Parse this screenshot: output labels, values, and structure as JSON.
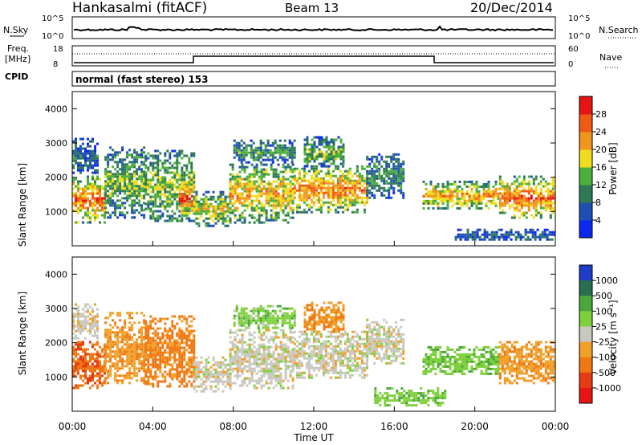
{
  "header": {
    "station": "Hankasalmi (fitACF)",
    "beam": "Beam 13",
    "date": "20/Dec/2014"
  },
  "strips": {
    "nsky_label": "N.Sky",
    "nsearch_label": "N.Search",
    "freq_label_1": "Freq.",
    "freq_label_2": "[MHz]",
    "nave_label": "Nave",
    "cpid_label": "CPID",
    "count_ticks_left": [
      "10^5",
      "10^0"
    ],
    "count_ticks_right": [
      "10^5",
      "10^0"
    ],
    "freq_ticks": [
      "18",
      "8"
    ],
    "nave_ticks": [
      "60",
      "0"
    ],
    "cpid_text": "normal (fast stereo) 153"
  },
  "chart_data": [
    {
      "type": "heatmap",
      "name": "power",
      "xlabel": "",
      "ylabel": "Slant Range [km]",
      "ylim": [
        0,
        4500
      ],
      "yticks": [
        "1000",
        "2000",
        "3000",
        "4000"
      ],
      "colorbar_label": "Power [dB]",
      "colorbar_ticks": [
        "4",
        "8",
        "12",
        "16",
        "20",
        "24",
        "28"
      ],
      "colorscale": [
        "#0a28f0",
        "#1e4fb4",
        "#2f7a55",
        "#4caf3c",
        "#f0dc1e",
        "#f0961e",
        "#f05a14",
        "#e61414"
      ],
      "echo_regions": [
        {
          "t": [
            0.0,
            1.6
          ],
          "r": [
            700,
            2050
          ],
          "level": 0.85
        },
        {
          "t": [
            0.0,
            1.2
          ],
          "r": [
            2100,
            3150
          ],
          "level": 0.25
        },
        {
          "t": [
            1.6,
            3.6
          ],
          "r": [
            800,
            2900
          ],
          "level": 0.45
        },
        {
          "t": [
            3.6,
            6.0
          ],
          "r": [
            700,
            2800
          ],
          "level": 0.5
        },
        {
          "t": [
            5.3,
            6.0
          ],
          "r": [
            900,
            1900
          ],
          "level": 0.95
        },
        {
          "t": [
            6.0,
            7.8
          ],
          "r": [
            600,
            1600
          ],
          "level": 0.6
        },
        {
          "t": [
            7.8,
            11.0
          ],
          "r": [
            700,
            2400
          ],
          "level": 0.7
        },
        {
          "t": [
            8.0,
            11.0
          ],
          "r": [
            2400,
            3100
          ],
          "level": 0.35
        },
        {
          "t": [
            11.0,
            14.6
          ],
          "r": [
            1000,
            2350
          ],
          "level": 0.8
        },
        {
          "t": [
            11.5,
            13.5
          ],
          "r": [
            2300,
            3200
          ],
          "level": 0.45
        },
        {
          "t": [
            14.6,
            16.4
          ],
          "r": [
            1400,
            2700
          ],
          "level": 0.35
        },
        {
          "t": [
            17.4,
            21.2
          ],
          "r": [
            1100,
            1900
          ],
          "level": 0.75
        },
        {
          "t": [
            21.2,
            24.0
          ],
          "r": [
            800,
            2050
          ],
          "level": 0.85
        },
        {
          "t": [
            19.0,
            24.0
          ],
          "r": [
            150,
            500
          ],
          "level": 0.2
        }
      ]
    },
    {
      "type": "heatmap",
      "name": "velocity",
      "xlabel": "Time UT",
      "ylabel": "Slant Range [km]",
      "ylim": [
        0,
        4500
      ],
      "yticks": [
        "1000",
        "2000",
        "3000",
        "4000"
      ],
      "xticks": [
        "00:00",
        "04:00",
        "08:00",
        "12:00",
        "16:00",
        "20:00",
        "00:00"
      ],
      "colorbar_label": "Velocity [m s⁻¹]",
      "colorbar_ticks": [
        "1000",
        "500",
        "100",
        "25",
        "-25",
        "-100",
        "-500",
        "-1000"
      ],
      "colorscale": [
        "#1e3cc8",
        "#2a6e50",
        "#4aa83a",
        "#7ed03a",
        "#c8c8c0",
        "#f0a028",
        "#f07814",
        "#e63c14",
        "#e61414"
      ],
      "echo_regions": [
        {
          "t": [
            0.0,
            1.6
          ],
          "r": [
            700,
            2050
          ],
          "v": -0.55
        },
        {
          "t": [
            0.0,
            1.2
          ],
          "r": [
            2100,
            3150
          ],
          "v": -0.05
        },
        {
          "t": [
            1.6,
            3.6
          ],
          "r": [
            800,
            2900
          ],
          "v": -0.3
        },
        {
          "t": [
            3.6,
            6.0
          ],
          "r": [
            700,
            2800
          ],
          "v": -0.45
        },
        {
          "t": [
            6.0,
            7.8
          ],
          "r": [
            600,
            1600
          ],
          "v": 0.0
        },
        {
          "t": [
            7.8,
            11.0
          ],
          "r": [
            700,
            2400
          ],
          "v": 0.0
        },
        {
          "t": [
            8.0,
            11.0
          ],
          "r": [
            2400,
            3100
          ],
          "v": 0.25
        },
        {
          "t": [
            11.0,
            14.6
          ],
          "r": [
            1000,
            2350
          ],
          "v": 0.0
        },
        {
          "t": [
            11.5,
            13.5
          ],
          "r": [
            2300,
            3200
          ],
          "v": -0.35
        },
        {
          "t": [
            14.6,
            16.4
          ],
          "r": [
            1400,
            2700
          ],
          "v": 0.0
        },
        {
          "t": [
            15.0,
            18.5
          ],
          "r": [
            200,
            700
          ],
          "v": 0.3
        },
        {
          "t": [
            17.4,
            21.2
          ],
          "r": [
            1100,
            1900
          ],
          "v": 0.3
        },
        {
          "t": [
            21.2,
            24.0
          ],
          "r": [
            800,
            2050
          ],
          "v": -0.3
        }
      ]
    }
  ]
}
